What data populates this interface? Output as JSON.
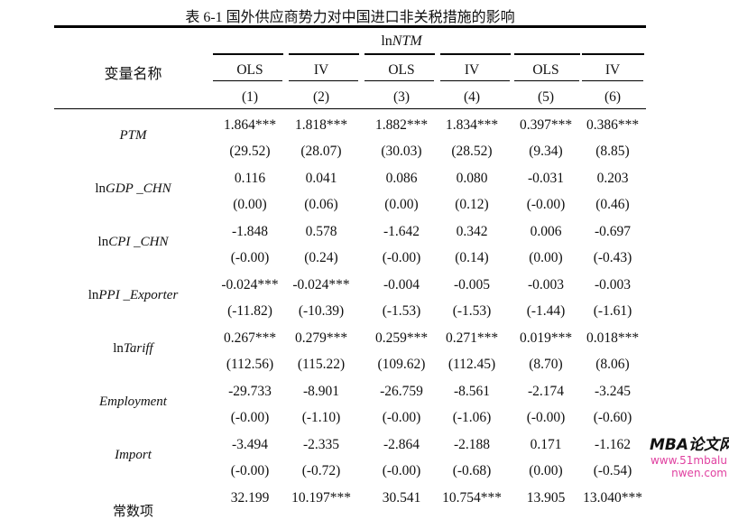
{
  "title": "表 6-1 国外供应商势力对中国进口非关税措施的影响",
  "header": {
    "dependent": "lnNTM",
    "dep_prefix": "ln",
    "dep_var": "NTM",
    "var_label": "变量名称",
    "methods": [
      "OLS",
      "IV",
      "OLS",
      "IV",
      "OLS",
      "IV"
    ],
    "columns": [
      "(1)",
      "(2)",
      "(3)",
      "(4)",
      "(5)",
      "(6)"
    ]
  },
  "rows": [
    {
      "prefix": "",
      "name": "PTM",
      "coef": [
        "1.864***",
        "1.818***",
        "1.882***",
        "1.834***",
        "0.397***",
        "0.386***"
      ],
      "t": [
        "(29.52)",
        "(28.07)",
        "(30.03)",
        "(28.52)",
        "(9.34)",
        "(8.85)"
      ]
    },
    {
      "prefix": "ln",
      "name": "GDP _CHN",
      "coef": [
        "0.116",
        "0.041",
        "0.086",
        "0.080",
        "-0.031",
        "0.203"
      ],
      "t": [
        "(0.00)",
        "(0.06)",
        "(0.00)",
        "(0.12)",
        "(-0.00)",
        "(0.46)"
      ]
    },
    {
      "prefix": "ln",
      "name": "CPI _CHN",
      "coef": [
        "-1.848",
        "0.578",
        "-1.642",
        "0.342",
        "0.006",
        "-0.697"
      ],
      "t": [
        "(-0.00)",
        "(0.24)",
        "(-0.00)",
        "(0.14)",
        "(0.00)",
        "(-0.43)"
      ]
    },
    {
      "prefix": "ln",
      "name": "PPI _Exporter",
      "coef": [
        "-0.024***",
        "-0.024***",
        "-0.004",
        "-0.005",
        "-0.003",
        "-0.003"
      ],
      "t": [
        "(-11.82)",
        "(-10.39)",
        "(-1.53)",
        "(-1.53)",
        "(-1.44)",
        "(-1.61)"
      ]
    },
    {
      "prefix": "ln",
      "name": "Tariff",
      "coef": [
        "0.267***",
        "0.279***",
        "0.259***",
        "0.271***",
        "0.019***",
        "0.018***"
      ],
      "t": [
        "(112.56)",
        "(115.22)",
        "(109.62)",
        "(112.45)",
        "(8.70)",
        "(8.06)"
      ]
    },
    {
      "prefix": "",
      "name": "Employment",
      "coef": [
        "-29.733",
        "-8.901",
        "-26.759",
        "-8.561",
        "-2.174",
        "-3.245"
      ],
      "t": [
        "(-0.00)",
        "(-1.10)",
        "(-0.00)",
        "(-1.06)",
        "(-0.00)",
        "(-0.60)"
      ]
    },
    {
      "prefix": "",
      "name": "Import",
      "coef": [
        "-3.494",
        "-2.335",
        "-2.864",
        "-2.188",
        "0.171",
        "-1.162"
      ],
      "t": [
        "(-0.00)",
        "(-0.72)",
        "(-0.00)",
        "(-0.68)",
        "(0.00)",
        "(-0.54)"
      ]
    },
    {
      "prefix": "",
      "name": "常数项",
      "coef": [
        "32.199",
        "10.197***",
        "30.541",
        "10.754***",
        "13.905",
        "13.040***"
      ],
      "t": []
    }
  ],
  "watermark": {
    "brand": "MBA论文网",
    "url": "www.51mbalunwen.com"
  }
}
